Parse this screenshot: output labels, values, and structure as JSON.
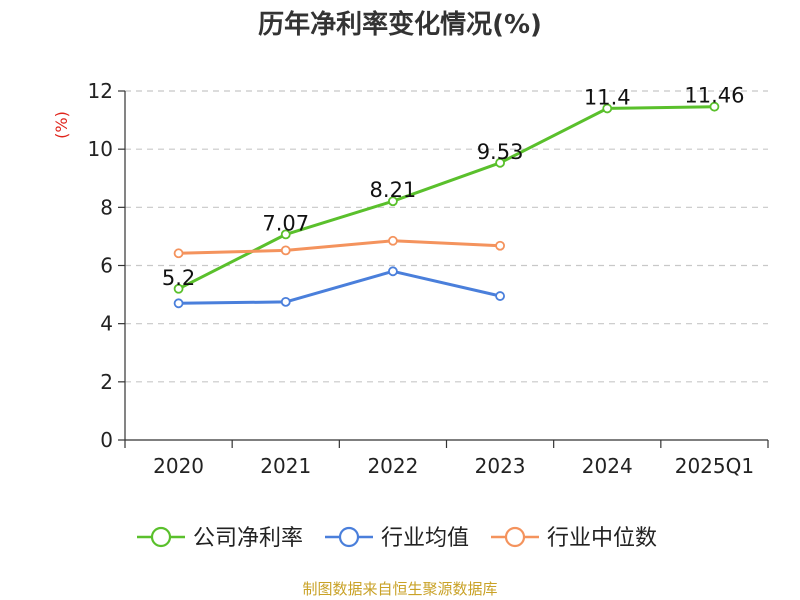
{
  "chart_data": {
    "type": "line",
    "title": "历年净利率变化情况(%)",
    "ylabel": "(%)",
    "xlabel": "",
    "categories": [
      "2020",
      "2021",
      "2022",
      "2023",
      "2024",
      "2025Q1"
    ],
    "ylim": [
      0,
      12
    ],
    "yticks": [
      0,
      2,
      4,
      6,
      8,
      10,
      12
    ],
    "grid": true,
    "legend_position": "bottom",
    "series": [
      {
        "name": "公司净利率",
        "color": "#5ac02c",
        "values": [
          5.2,
          7.07,
          8.21,
          9.53,
          11.4,
          11.46
        ],
        "labels": [
          "5.2",
          "7.07",
          "8.21",
          "9.53",
          "11.4",
          "11.46"
        ],
        "show_labels": true
      },
      {
        "name": "行业均值",
        "color": "#4a7fdb",
        "values": [
          4.7,
          4.75,
          5.8,
          4.95,
          null,
          null
        ],
        "show_labels": false
      },
      {
        "name": "行业中位数",
        "color": "#f4935d",
        "values": [
          6.42,
          6.52,
          6.85,
          6.68,
          null,
          null
        ],
        "show_labels": false
      }
    ]
  },
  "footer": {
    "source": "制图数据来自恒生聚源数据库"
  }
}
